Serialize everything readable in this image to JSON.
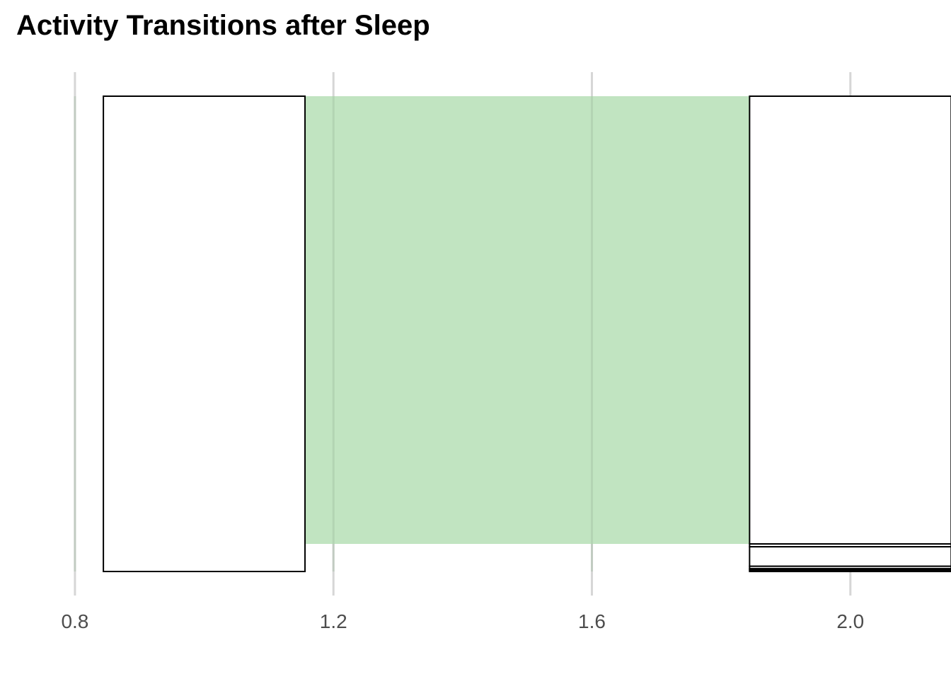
{
  "chart_data": {
    "type": "alluvial",
    "title": "Activity Transitions after Sleep",
    "xlabel": "",
    "ylabel": "",
    "xlim": [
      0.73,
      2.09
    ],
    "x_ticks": [
      "0.8",
      "1.2",
      "1.6",
      "2.0"
    ],
    "x_tick_values": [
      0.8,
      1.2,
      1.6,
      2.0
    ],
    "grid": "vertical major lines",
    "legend": "none",
    "axes": [
      {
        "x": 1.0,
        "strata": [
          {
            "value": 1.0
          }
        ]
      },
      {
        "x": 2.0,
        "strata": [
          {
            "value": 0.942
          },
          {
            "value": 0.006
          },
          {
            "value": 0.041
          },
          {
            "value": 0.005
          },
          {
            "value": 0.003
          },
          {
            "value": 0.003
          }
        ]
      }
    ],
    "flows": [
      {
        "from_axis": 0,
        "from_stratum": 0,
        "to_axis": 1,
        "to_stratum": 0,
        "value": 0.942,
        "color": "#c1e4c1"
      }
    ],
    "colors": {
      "flow": "#c1e4c1",
      "stratum_fill": "#ffffff",
      "stratum_stroke": "#000000",
      "grid": "#d6d6d6",
      "tick_label": "#4d4d4d"
    }
  }
}
